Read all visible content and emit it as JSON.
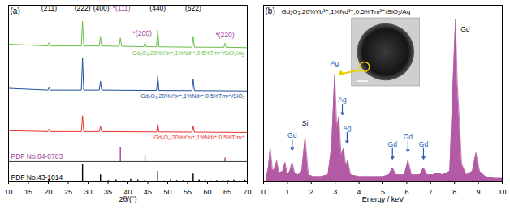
{
  "chart_data": [
    {
      "panel": "(a)",
      "type": "line",
      "xlabel": "2θ/(°)",
      "xlim": [
        10,
        70
      ],
      "xticks": [
        10,
        15,
        20,
        25,
        30,
        35,
        40,
        45,
        50,
        55,
        60,
        65,
        70
      ],
      "ylim": [
        0,
        100
      ],
      "tick_labels": "x",
      "series": [
        {
          "name": "Gd₂O₃:20%Yb³⁺,1%Nd³⁺,0.5%Tm³⁺",
          "color": "#e8302a",
          "x": [
            10,
            19.9,
            20.2,
            20.5,
            28.3,
            28.6,
            28.9,
            32.8,
            33.1,
            33.4,
            47.2,
            47.5,
            47.8,
            56.1,
            56.4,
            56.7,
            70
          ],
          "values": [
            29,
            28.5,
            30,
            28.5,
            28.5,
            37.5,
            28.5,
            28.5,
            31.5,
            28.5,
            28.3,
            33,
            28.3,
            28.2,
            31.5,
            28.2,
            28
          ]
        },
        {
          "name": "Gd₂O₃:20%Yb³⁺,1%Nd³⁺,0.5%Tm³⁺/SiO₂",
          "color": "#2050a0",
          "x": [
            10,
            19.9,
            20.2,
            20.5,
            28.3,
            28.6,
            28.9,
            32.8,
            33.1,
            33.4,
            47.2,
            47.5,
            47.8,
            56.1,
            56.4,
            56.7,
            70
          ],
          "values": [
            53,
            52,
            53.5,
            52,
            52,
            70,
            52,
            52,
            57,
            52,
            51.8,
            60,
            51.8,
            51.7,
            58,
            51.7,
            51.5
          ]
        },
        {
          "name": "Gd₂O₃:20%Yb³⁺,1%Nd³⁺,0.5%Tm³⁺/SiO₂/Ag",
          "color": "#6abf45",
          "x": [
            10,
            19.9,
            20.2,
            20.5,
            28.3,
            28.6,
            28.9,
            32.8,
            33.1,
            33.4,
            37.8,
            38.1,
            38.4,
            44.0,
            44.3,
            44.6,
            47.2,
            47.5,
            47.8,
            56.1,
            56.4,
            56.7,
            64.1,
            64.4,
            64.7,
            70
          ],
          "values": [
            78,
            77,
            79,
            77,
            77,
            91,
            77,
            77,
            82,
            77,
            76.8,
            81.5,
            76.8,
            76.6,
            79,
            76.6,
            76.5,
            86,
            76.5,
            76.3,
            82,
            76.3,
            76.2,
            78.5,
            76.2,
            76
          ]
        }
      ],
      "references": [
        {
          "name": "PDF No.04-0783",
          "color": "#a5409e",
          "base": 11.5,
          "x": [
            38.1,
            44.3,
            64.4
          ],
          "values": [
            8,
            3.5,
            2
          ]
        },
        {
          "name": "PDF No.43-1014",
          "color": "#000000",
          "base": 0,
          "x": [
            20.1,
            28.6,
            31.1,
            33.1,
            35.1,
            37.0,
            38.9,
            40.7,
            42.5,
            44.2,
            47.5,
            49.1,
            50.7,
            52.3,
            53.9,
            55.4,
            56.4,
            57.9,
            59.4,
            60.9,
            62.3,
            63.8,
            65.2,
            66.6,
            68.0,
            69.4
          ],
          "values": [
            1.5,
            10,
            0.5,
            4,
            0.8,
            1.2,
            0.6,
            1.5,
            1.2,
            0.8,
            6,
            0.6,
            1.2,
            0.8,
            0.8,
            0.6,
            4.5,
            1.2,
            1.2,
            0.6,
            0.8,
            0.8,
            0.8,
            1.0,
            0.6,
            1.0
          ]
        }
      ],
      "annotations": [
        {
          "text": "(211)",
          "x": 20.2,
          "y": 97,
          "color": "#000000"
        },
        {
          "text": "(222)",
          "x": 28.6,
          "y": 97,
          "color": "#000000"
        },
        {
          "text": "(400)",
          "x": 33.3,
          "y": 97,
          "color": "#000000"
        },
        {
          "text": "*(111)",
          "x": 38.4,
          "y": 97,
          "color": "#a5409e"
        },
        {
          "text": "(440)",
          "x": 47.5,
          "y": 97,
          "color": "#000000"
        },
        {
          "text": "(622)",
          "x": 56.4,
          "y": 97,
          "color": "#000000"
        },
        {
          "text": "*(200)",
          "x": 43.6,
          "y": 83,
          "color": "#a5409e"
        },
        {
          "text": "*(220)",
          "x": 64.4,
          "y": 82,
          "color": "#a5409e"
        }
      ]
    },
    {
      "panel": "(b)",
      "type": "area",
      "title": "Gd₂O₃:20%Yb³⁺,1%Nd³⁺,0.5%Tm³⁺/SiO₂/Ag",
      "xlabel": "Energy / keV",
      "xlim": [
        0,
        10
      ],
      "xticks": [
        0,
        1,
        2,
        3,
        4,
        5,
        6,
        7,
        8,
        9,
        10
      ],
      "ylim": [
        0,
        100
      ],
      "tick_labels": "x",
      "color": "#b35aa5",
      "x": [
        0.1,
        0.2,
        0.28,
        0.38,
        0.5,
        0.55,
        0.65,
        0.8,
        0.9,
        1.0,
        1.1,
        1.2,
        1.3,
        1.45,
        1.6,
        1.74,
        1.88,
        2.1,
        2.4,
        2.7,
        2.85,
        2.98,
        3.07,
        3.15,
        3.25,
        3.35,
        3.45,
        3.52,
        3.65,
        4.0,
        4.5,
        5.0,
        5.25,
        5.4,
        5.55,
        5.9,
        6.05,
        6.2,
        6.55,
        6.7,
        6.85,
        7.1,
        7.3,
        7.5,
        7.8,
        7.95,
        8.04,
        8.12,
        8.3,
        8.5,
        8.75,
        8.9,
        9.05,
        9.3,
        9.7,
        10
      ],
      "values": [
        1,
        8,
        19,
        6,
        8,
        12,
        5,
        6,
        11,
        4,
        6,
        11,
        5,
        4,
        6,
        25,
        4,
        3,
        3,
        4,
        20,
        61,
        30,
        37,
        15,
        19,
        9,
        12,
        4,
        3,
        3,
        3,
        4,
        8,
        4,
        4,
        12,
        4,
        4,
        8,
        4,
        4,
        5,
        4,
        6,
        60,
        92,
        55,
        10,
        4,
        6,
        16.5,
        6,
        3,
        2,
        2
      ],
      "annotations": [
        {
          "text": "Gd",
          "x": 1.2,
          "y": 25,
          "color": "#2a5bb8",
          "marker": "arrow"
        },
        {
          "text": "Si",
          "x": 1.74,
          "y": 32,
          "color": "#222222"
        },
        {
          "text": "Ag",
          "x": 2.98,
          "y": 66,
          "color": "#2a5bb8"
        },
        {
          "text": "Ag",
          "x": 3.3,
          "y": 45,
          "color": "#2a5bb8",
          "marker": "arrow"
        },
        {
          "text": "Ag",
          "x": 3.5,
          "y": 29,
          "color": "#2a5bb8",
          "marker": "arrow"
        },
        {
          "text": "Gd",
          "x": 5.4,
          "y": 20,
          "color": "#2a5bb8",
          "marker": "arrow"
        },
        {
          "text": "Gd",
          "x": 6.05,
          "y": 24,
          "color": "#2a5bb8",
          "marker": "arrow"
        },
        {
          "text": "Gd",
          "x": 6.7,
          "y": 20,
          "color": "#2a5bb8",
          "marker": "arrow"
        },
        {
          "text": "Gd",
          "x": 8.45,
          "y": 85,
          "color": "#222222"
        }
      ]
    }
  ]
}
